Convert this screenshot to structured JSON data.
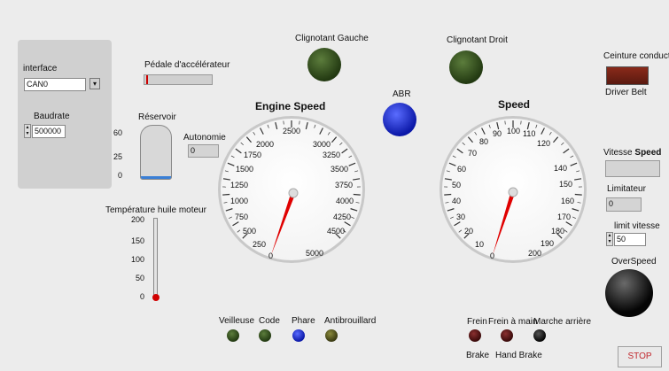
{
  "interface": {
    "label": "interface",
    "value": "CAN0"
  },
  "baudrate": {
    "label": "Baudrate",
    "value": "500000"
  },
  "pedal": {
    "label": "Pédale d'accélérateur"
  },
  "tank": {
    "label": "Réservoir",
    "ticks": [
      "60",
      "25",
      "0"
    ],
    "level": 0.05
  },
  "autonomie": {
    "label": "Autonomie",
    "value": "0"
  },
  "oil": {
    "label": "Température huile moteur",
    "ticks": [
      "200",
      "150",
      "100",
      "50",
      "0"
    ]
  },
  "clign_g": {
    "label": "Clignotant Gauche"
  },
  "clign_d": {
    "label": "Clignotant Droit"
  },
  "abr": {
    "label": "ABR"
  },
  "engine": {
    "title": "Engine Speed",
    "ticks": [
      "0",
      "250",
      "500",
      "750",
      "1000",
      "1250",
      "1500",
      "1750",
      "2000",
      "2500",
      "3000",
      "3250",
      "3500",
      "3750",
      "4000",
      "4250",
      "4500",
      "5000"
    ],
    "value": 0
  },
  "speed": {
    "title": "Speed",
    "ticks": [
      "0",
      "10",
      "20",
      "30",
      "40",
      "50",
      "60",
      "70",
      "80",
      "90",
      "100",
      "110",
      "120",
      "140",
      "150",
      "160",
      "170",
      "180",
      "190",
      "200"
    ],
    "value": 0
  },
  "belt": {
    "label": "Ceinture conducte",
    "sub": "Driver Belt"
  },
  "vitesse": {
    "label": "Vitesse",
    "label_bold": "Speed",
    "value": ""
  },
  "limitateur": {
    "label": "Limitateur",
    "value": "0"
  },
  "limit": {
    "label": "limit vitesse",
    "value": "50"
  },
  "overspeed": {
    "label": "OverSpeed"
  },
  "lights": [
    {
      "label": "Veilleuse"
    },
    {
      "label": "Code"
    },
    {
      "label": "Phare"
    },
    {
      "label": "Antibrouillard"
    }
  ],
  "brakes": [
    {
      "label": "Frein"
    },
    {
      "label": "Frein à main"
    },
    {
      "label": "Marche arrière"
    }
  ],
  "brake_sub": {
    "a": "Brake",
    "b": "Hand Brake"
  },
  "stop": {
    "label": "STOP"
  },
  "colors": {
    "led_green": "#2d4a1a",
    "led_blue": "#1020c0",
    "led_red": "#4a1515",
    "needle": "#e00000"
  }
}
